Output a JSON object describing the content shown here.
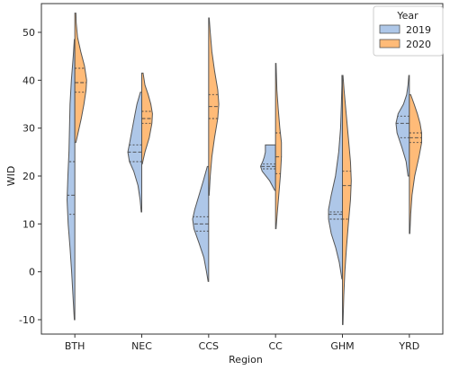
{
  "chart_data": {
    "type": "violin",
    "split": true,
    "xlabel": "Region",
    "ylabel": "WID",
    "ylim": [
      -13,
      56
    ],
    "yticks": [
      -10,
      0,
      10,
      20,
      30,
      40,
      50
    ],
    "categories": [
      "BTH",
      "NEC",
      "CCS",
      "CC",
      "GHM",
      "YRD"
    ],
    "legend": {
      "title": "Year",
      "position": "top-right"
    },
    "series": [
      {
        "name": "2019",
        "color": "#aec7e8",
        "violins": [
          {
            "min": -10,
            "max": 48.5,
            "q1": 12,
            "median": 16,
            "q3": 23,
            "profile": [
              [
                -10,
                0.02
              ],
              [
                -5,
                0.07
              ],
              [
                0,
                0.12
              ],
              [
                5,
                0.18
              ],
              [
                10,
                0.25
              ],
              [
                15,
                0.29
              ],
              [
                20,
                0.26
              ],
              [
                25,
                0.22
              ],
              [
                30,
                0.2
              ],
              [
                35,
                0.18
              ],
              [
                40,
                0.13
              ],
              [
                45,
                0.06
              ],
              [
                48.5,
                0.02
              ]
            ]
          },
          {
            "min": 12.5,
            "max": 37.5,
            "q1": 23,
            "median": 25,
            "q3": 26.5,
            "profile": [
              [
                12.5,
                0.02
              ],
              [
                15,
                0.06
              ],
              [
                18,
                0.14
              ],
              [
                21,
                0.3
              ],
              [
                23,
                0.46
              ],
              [
                25,
                0.52
              ],
              [
                27,
                0.45
              ],
              [
                30,
                0.35
              ],
              [
                33,
                0.25
              ],
              [
                35,
                0.18
              ],
              [
                37.5,
                0.05
              ]
            ]
          },
          {
            "min": -2,
            "max": 22,
            "q1": 8.5,
            "median": 10,
            "q3": 11.5,
            "profile": [
              [
                -2,
                0.02
              ],
              [
                0,
                0.08
              ],
              [
                3,
                0.18
              ],
              [
                6,
                0.36
              ],
              [
                9,
                0.55
              ],
              [
                11,
                0.6
              ],
              [
                13,
                0.52
              ],
              [
                16,
                0.36
              ],
              [
                19,
                0.2
              ],
              [
                22,
                0.05
              ]
            ]
          },
          {
            "min": 17,
            "max": 26.5,
            "q1": 21.5,
            "median": 22,
            "q3": 22.5,
            "profile": [
              [
                17,
                0.03
              ],
              [
                19,
                0.22
              ],
              [
                21,
                0.5
              ],
              [
                22,
                0.56
              ],
              [
                23,
                0.48
              ],
              [
                24,
                0.42
              ],
              [
                25,
                0.38
              ],
              [
                26.5,
                0.38
              ]
            ]
          },
          {
            "min": -1.5,
            "max": 41,
            "q1": 11,
            "median": 12,
            "q3": 12.5,
            "profile": [
              [
                -1.5,
                0.02
              ],
              [
                2,
                0.12
              ],
              [
                5,
                0.25
              ],
              [
                8,
                0.42
              ],
              [
                11,
                0.52
              ],
              [
                13,
                0.52
              ],
              [
                16,
                0.42
              ],
              [
                20,
                0.26
              ],
              [
                25,
                0.14
              ],
              [
                30,
                0.07
              ],
              [
                35,
                0.04
              ],
              [
                39,
                0.02
              ],
              [
                41,
                0.02
              ]
            ]
          },
          {
            "min": 20,
            "max": 41,
            "q1": 28,
            "median": 31,
            "q3": 32.5,
            "profile": [
              [
                20,
                0.05
              ],
              [
                23,
                0.12
              ],
              [
                26,
                0.28
              ],
              [
                29,
                0.46
              ],
              [
                31,
                0.5
              ],
              [
                33,
                0.42
              ],
              [
                35,
                0.22
              ],
              [
                37,
                0.1
              ],
              [
                39,
                0.05
              ],
              [
                41,
                0.02
              ]
            ]
          }
        ]
      },
      {
        "name": "2020",
        "color": "#ffbb78",
        "violins": [
          {
            "min": 27,
            "max": 54,
            "q1": 37.5,
            "median": 39.5,
            "q3": 42.5,
            "profile": [
              [
                27,
                0.04
              ],
              [
                29,
                0.12
              ],
              [
                32,
                0.24
              ],
              [
                35,
                0.34
              ],
              [
                38,
                0.42
              ],
              [
                40,
                0.44
              ],
              [
                43,
                0.36
              ],
              [
                46,
                0.22
              ],
              [
                49,
                0.1
              ],
              [
                52,
                0.05
              ],
              [
                54,
                0.04
              ]
            ]
          },
          {
            "min": 22.5,
            "max": 41.5,
            "q1": 31,
            "median": 32,
            "q3": 33.5,
            "profile": [
              [
                22.5,
                0.02
              ],
              [
                25,
                0.12
              ],
              [
                28,
                0.28
              ],
              [
                31,
                0.38
              ],
              [
                33,
                0.4
              ],
              [
                35,
                0.34
              ],
              [
                37,
                0.24
              ],
              [
                39,
                0.12
              ],
              [
                41.5,
                0.05
              ]
            ]
          },
          {
            "min": 16,
            "max": 53,
            "q1": 32,
            "median": 34.5,
            "q3": 37,
            "profile": [
              [
                16,
                0.02
              ],
              [
                20,
                0.06
              ],
              [
                24,
                0.12
              ],
              [
                28,
                0.22
              ],
              [
                32,
                0.34
              ],
              [
                35,
                0.38
              ],
              [
                38,
                0.34
              ],
              [
                42,
                0.22
              ],
              [
                46,
                0.12
              ],
              [
                50,
                0.06
              ],
              [
                53,
                0.02
              ]
            ]
          },
          {
            "min": 9,
            "max": 43.5,
            "q1": 20.5,
            "median": 24,
            "q3": 29,
            "profile": [
              [
                9,
                0.02
              ],
              [
                12,
                0.06
              ],
              [
                16,
                0.12
              ],
              [
                20,
                0.18
              ],
              [
                24,
                0.22
              ],
              [
                27,
                0.22
              ],
              [
                30,
                0.16
              ],
              [
                34,
                0.1
              ],
              [
                38,
                0.05
              ],
              [
                43.5,
                0.02
              ]
            ]
          },
          {
            "min": -11,
            "max": 41,
            "q1": 11,
            "median": 18,
            "q3": 21,
            "profile": [
              [
                -11,
                0.02
              ],
              [
                -5,
                0.05
              ],
              [
                0,
                0.09
              ],
              [
                5,
                0.15
              ],
              [
                10,
                0.22
              ],
              [
                15,
                0.3
              ],
              [
                19,
                0.33
              ],
              [
                23,
                0.3
              ],
              [
                28,
                0.22
              ],
              [
                33,
                0.14
              ],
              [
                38,
                0.06
              ],
              [
                41,
                0.02
              ]
            ]
          },
          {
            "min": 8,
            "max": 37,
            "q1": 27,
            "median": 28,
            "q3": 29,
            "profile": [
              [
                8,
                0.02
              ],
              [
                12,
                0.05
              ],
              [
                16,
                0.1
              ],
              [
                20,
                0.2
              ],
              [
                24,
                0.36
              ],
              [
                27,
                0.46
              ],
              [
                29,
                0.46
              ],
              [
                31,
                0.4
              ],
              [
                33,
                0.3
              ],
              [
                35,
                0.18
              ],
              [
                37,
                0.05
              ]
            ]
          }
        ]
      }
    ]
  }
}
